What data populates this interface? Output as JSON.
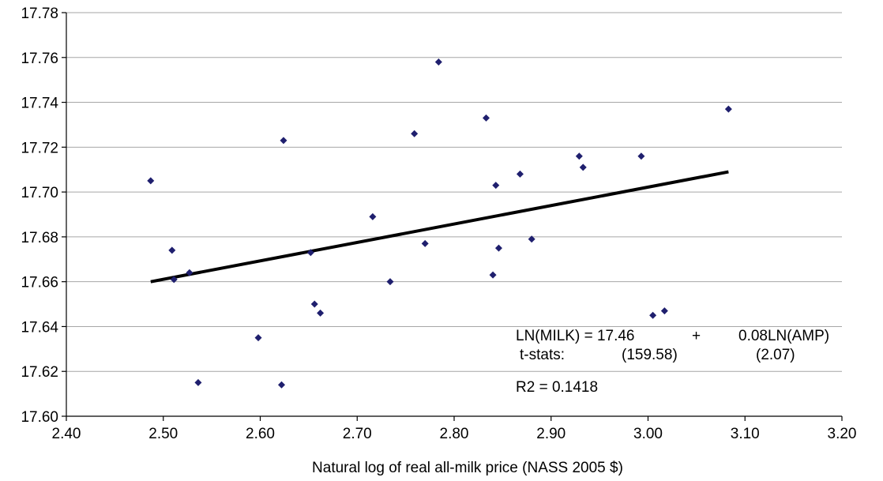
{
  "chart_data": {
    "type": "scatter",
    "title": "",
    "xlabel": "Natural log of real all-milk price (NASS 2005 $)",
    "ylabel": "",
    "xlim": [
      2.4,
      3.2
    ],
    "ylim": [
      17.6,
      17.78
    ],
    "grid": true,
    "x_ticks": [
      "2.40",
      "2.50",
      "2.60",
      "2.70",
      "2.80",
      "2.90",
      "3.00",
      "3.10",
      "3.20"
    ],
    "y_ticks": [
      "17.60",
      "17.62",
      "17.64",
      "17.66",
      "17.68",
      "17.70",
      "17.72",
      "17.74",
      "17.76",
      "17.78"
    ],
    "points": [
      {
        "x": 2.487,
        "y": 17.705
      },
      {
        "x": 2.509,
        "y": 17.674
      },
      {
        "x": 2.511,
        "y": 17.661
      },
      {
        "x": 2.527,
        "y": 17.664
      },
      {
        "x": 2.536,
        "y": 17.615
      },
      {
        "x": 2.598,
        "y": 17.635
      },
      {
        "x": 2.622,
        "y": 17.614
      },
      {
        "x": 2.624,
        "y": 17.723
      },
      {
        "x": 2.652,
        "y": 17.673
      },
      {
        "x": 2.656,
        "y": 17.65
      },
      {
        "x": 2.662,
        "y": 17.646
      },
      {
        "x": 2.716,
        "y": 17.689
      },
      {
        "x": 2.734,
        "y": 17.66
      },
      {
        "x": 2.759,
        "y": 17.726
      },
      {
        "x": 2.77,
        "y": 17.677
      },
      {
        "x": 2.784,
        "y": 17.758
      },
      {
        "x": 2.833,
        "y": 17.733
      },
      {
        "x": 2.84,
        "y": 17.663
      },
      {
        "x": 2.843,
        "y": 17.703
      },
      {
        "x": 2.846,
        "y": 17.675
      },
      {
        "x": 2.868,
        "y": 17.708
      },
      {
        "x": 2.88,
        "y": 17.679
      },
      {
        "x": 2.929,
        "y": 17.716
      },
      {
        "x": 2.933,
        "y": 17.711
      },
      {
        "x": 2.993,
        "y": 17.716
      },
      {
        "x": 3.005,
        "y": 17.645
      },
      {
        "x": 3.017,
        "y": 17.647
      },
      {
        "x": 3.083,
        "y": 17.737
      }
    ],
    "trendline": {
      "x": [
        2.487,
        3.083
      ],
      "y": [
        17.66,
        17.709
      ]
    },
    "annotations": {
      "equation_lhs": "LN(MILK) = 17.46",
      "equation_plus": "+",
      "equation_rhs": "0.08LN(AMP)",
      "tstats_label": "t-stats:",
      "tstat_intercept": "(159.58)",
      "tstat_slope": "(2.07)",
      "r2": "R2 = 0.1418"
    },
    "colors": {
      "marker": "#1f1f6e",
      "line": "#000000",
      "grid": "#a6a6a6"
    }
  }
}
